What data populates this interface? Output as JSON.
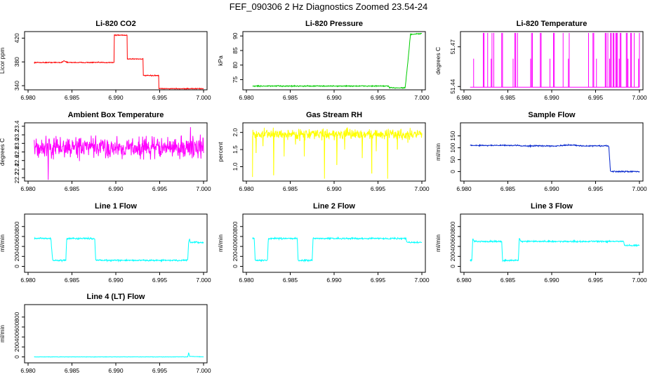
{
  "figure_title": "FEF_090306  2 Hz Diagnostics Zoomed 23.54-24",
  "chart_data": [
    {
      "type": "line",
      "title": "Li-820 CO2",
      "ylabel": "Licor ppm",
      "color": "#ff0000",
      "xlim": [
        6.98,
        7.0
      ],
      "ylim": [
        333,
        431
      ],
      "yticks": [
        340,
        380,
        420
      ],
      "yticklabels": [
        "340",
        "380",
        "420"
      ],
      "xticks": [
        6.98,
        6.985,
        6.99,
        6.995,
        7.0
      ],
      "xticklabels": [
        "6.980",
        "6.985",
        "6.990",
        "6.995",
        "7.000"
      ],
      "series": [
        {
          "name": "CO2",
          "points": [
            [
              6.9807,
              379
            ],
            [
              6.9838,
              379
            ],
            [
              6.9841,
              382
            ],
            [
              6.9845,
              379
            ],
            [
              6.9898,
              379
            ],
            [
              6.9898,
              425
            ],
            [
              6.9913,
              425
            ],
            [
              6.9913,
              385
            ],
            [
              6.9931,
              385
            ],
            [
              6.9931,
              357
            ],
            [
              6.9949,
              357
            ],
            [
              6.9949,
              335
            ],
            [
              6.9981,
              335
            ],
            [
              6.9981,
              338
            ],
            [
              6.9981,
              335
            ],
            [
              7.0,
              335
            ]
          ],
          "noise": 0.6
        }
      ]
    },
    {
      "type": "line",
      "title": "Li-820 Pressure",
      "ylabel": "kPa",
      "color": "#00cc00",
      "xlim": [
        6.98,
        7.0
      ],
      "ylim": [
        71.5,
        91.5
      ],
      "yticks": [
        75,
        80,
        85,
        90
      ],
      "yticklabels": [
        "75",
        "80",
        "85",
        "90"
      ],
      "xticks": [
        6.98,
        6.985,
        6.99,
        6.995,
        7.0
      ],
      "xticklabels": [
        "6.980",
        "6.985",
        "6.990",
        "6.995",
        "7.000"
      ],
      "series": [
        {
          "name": "Pressure",
          "points": [
            [
              6.9807,
              72.8
            ],
            [
              6.9962,
              72.8
            ],
            [
              6.9963,
              72.2
            ],
            [
              6.9981,
              72.2
            ],
            [
              6.9985,
              84
            ],
            [
              6.9987,
              90.5
            ],
            [
              7.0,
              90.8
            ]
          ],
          "noise": 0.15
        }
      ]
    },
    {
      "type": "line",
      "title": "Li-820 Temperature",
      "ylabel": "degrees C",
      "color": "#ff00ff",
      "xlim": [
        6.98,
        7.0
      ],
      "ylim": [
        51.4375,
        51.4815
      ],
      "yticks": [
        51.44,
        51.47
      ],
      "yticklabels": [
        "51.44",
        "51.47"
      ],
      "xticks": [
        6.98,
        6.985,
        6.99,
        6.995,
        7.0
      ],
      "xticklabels": [
        "6.980",
        "6.985",
        "6.990",
        "6.995",
        "7.000"
      ],
      "series": [
        {
          "name": "Temperature",
          "baseline": 51.4395,
          "spike_to": [
            51.461,
            51.4805
          ],
          "spikes": [
            6.9811,
            6.9822,
            6.9827,
            6.9831,
            6.9834,
            6.9843,
            6.9856,
            6.9858,
            6.9861,
            6.9876,
            6.9878,
            6.9887,
            6.9898,
            6.9902,
            6.9913,
            6.9919,
            6.9942,
            6.9947,
            6.9951,
            6.9961,
            6.9964,
            6.9966,
            6.9968,
            6.997,
            6.9971,
            6.9973,
            6.9975,
            6.9977,
            6.9979,
            6.9985,
            6.9987,
            6.999,
            6.9994,
            6.9999
          ]
        }
      ]
    },
    {
      "type": "line",
      "title": "Ambient Box Temperature",
      "ylabel": "degrees C",
      "color": "#ff00ff",
      "xlim": [
        6.98,
        7.0
      ],
      "ylim": [
        22.12,
        23.48
      ],
      "yticks": [
        22.2,
        22.4,
        22.6,
        22.8,
        23.0,
        23.2,
        23.4
      ],
      "yticklabels": [
        "22.2",
        "22.4",
        "22.6",
        "22.8",
        "23.0",
        "23.2",
        "23.4"
      ],
      "xticks": [
        6.98,
        6.985,
        6.99,
        6.995,
        7.0
      ],
      "xticklabels": [
        "6.980",
        "6.985",
        "6.990",
        "6.995",
        "7.000"
      ],
      "series": [
        {
          "name": "Box temperature",
          "points": [
            [
              6.9807,
              22.9
            ],
            [
              7.0,
              22.9
            ]
          ],
          "noise": 0.2,
          "min_point": [
            6.9823,
            22.15
          ],
          "max_point": [
            6.9985,
            23.38
          ]
        }
      ]
    },
    {
      "type": "line",
      "title": "Gas Stream RH",
      "ylabel": "percent",
      "color": "#ffff00",
      "xlim": [
        6.98,
        7.0
      ],
      "ylim": [
        0.58,
        2.28
      ],
      "yticks": [
        1.0,
        1.5,
        2.0
      ],
      "yticklabels": [
        "1.0",
        "1.5",
        "2.0"
      ],
      "xticks": [
        6.98,
        6.985,
        6.99,
        6.995,
        7.0
      ],
      "xticklabels": [
        "6.980",
        "6.985",
        "6.990",
        "6.995",
        "7.000"
      ],
      "series": [
        {
          "name": "RH",
          "points": [
            [
              6.9807,
              1.95
            ],
            [
              7.0,
              1.95
            ]
          ],
          "noise": 0.12,
          "dips": [
            [
              6.9807,
              0.7
            ],
            [
              6.9811,
              1.4
            ],
            [
              6.9819,
              1.6
            ],
            [
              6.9831,
              0.75
            ],
            [
              6.9843,
              1.3
            ],
            [
              6.9856,
              1.65
            ],
            [
              6.9866,
              1.3
            ],
            [
              6.9889,
              0.65
            ],
            [
              6.9903,
              1.05
            ],
            [
              6.9912,
              1.5
            ],
            [
              6.9932,
              1.25
            ],
            [
              6.9943,
              0.8
            ],
            [
              6.9948,
              1.45
            ],
            [
              6.9961,
              0.65
            ],
            [
              6.9972,
              1.5
            ],
            [
              6.9984,
              1.7
            ]
          ]
        }
      ]
    },
    {
      "type": "line",
      "title": "Sample Flow",
      "ylabel": "ml/min",
      "color": "#0022cc",
      "xlim": [
        6.98,
        7.0
      ],
      "ylim": [
        -40,
        205
      ],
      "yticks": [
        0,
        50,
        100,
        150
      ],
      "yticklabels": [
        "0",
        "50",
        "100",
        "150"
      ],
      "xticks": [
        6.98,
        6.985,
        6.99,
        6.995,
        7.0
      ],
      "xticklabels": [
        "6.980",
        "6.985",
        "6.990",
        "6.995",
        "7.000"
      ],
      "series": [
        {
          "name": "Sample flow",
          "points": [
            [
              6.9807,
              110
            ],
            [
              6.9862,
              110
            ],
            [
              6.9862,
              108
            ],
            [
              6.9905,
              108
            ],
            [
              6.9925,
              112
            ],
            [
              6.9932,
              108
            ],
            [
              6.9965,
              108
            ],
            [
              6.9967,
              0
            ],
            [
              7.0,
              0
            ]
          ],
          "noise": 2
        }
      ]
    },
    {
      "type": "line",
      "title": "Line 1 Flow",
      "ylabel": "ml/min",
      "color": "#00ffff",
      "xlim": [
        6.98,
        7.0
      ],
      "ylim": [
        -120,
        1050
      ],
      "yticks": [
        0,
        200,
        400,
        600,
        800
      ],
      "yticklabels": [
        "0",
        "200",
        "400",
        "600",
        "800"
      ],
      "xticks": [
        6.98,
        6.985,
        6.99,
        6.995,
        7.0
      ],
      "xticklabels": [
        "6.980",
        "6.985",
        "6.990",
        "6.995",
        "7.000"
      ],
      "series": [
        {
          "name": "Line 1",
          "points": [
            [
              6.9807,
              560
            ],
            [
              6.9826,
              560
            ],
            [
              6.9828,
              120
            ],
            [
              6.9843,
              120
            ],
            [
              6.9844,
              560
            ],
            [
              6.9876,
              560
            ],
            [
              6.9877,
              130
            ],
            [
              6.9887,
              120
            ],
            [
              6.9982,
              120
            ],
            [
              6.9983,
              480
            ],
            [
              6.9984,
              560
            ],
            [
              6.9985,
              480
            ],
            [
              7.0,
              480
            ]
          ],
          "noise": 12
        }
      ]
    },
    {
      "type": "line",
      "title": "Line 2 Flow",
      "ylabel": "ml/min",
      "color": "#00ffff",
      "xlim": [
        6.98,
        7.0
      ],
      "ylim": [
        -120,
        1050
      ],
      "yticks": [
        0,
        200,
        400,
        600,
        800
      ],
      "yticklabels": [
        "0",
        "200",
        "400",
        "600",
        "800"
      ],
      "xticks": [
        6.98,
        6.985,
        6.99,
        6.995,
        7.0
      ],
      "xticklabels": [
        "6.980",
        "6.985",
        "6.990",
        "6.995",
        "7.000"
      ],
      "series": [
        {
          "name": "Line 2",
          "points": [
            [
              6.9807,
              560
            ],
            [
              6.9809,
              560
            ],
            [
              6.981,
              120
            ],
            [
              6.9824,
              120
            ],
            [
              6.9825,
              560
            ],
            [
              6.9858,
              560
            ],
            [
              6.9859,
              120
            ],
            [
              6.9875,
              120
            ],
            [
              6.9876,
              560
            ],
            [
              6.9982,
              560
            ],
            [
              6.9983,
              480
            ],
            [
              7.0,
              480
            ]
          ],
          "noise": 12
        }
      ]
    },
    {
      "type": "line",
      "title": "Line 3 Flow",
      "ylabel": "ml/min",
      "color": "#00ffff",
      "xlim": [
        6.98,
        7.0
      ],
      "ylim": [
        -120,
        1050
      ],
      "yticks": [
        0,
        200,
        400,
        600,
        800
      ],
      "yticklabels": [
        "0",
        "200",
        "400",
        "600",
        "800"
      ],
      "xticks": [
        6.98,
        6.985,
        6.99,
        6.995,
        7.0
      ],
      "xticklabels": [
        "6.980",
        "6.985",
        "6.990",
        "6.995",
        "7.000"
      ],
      "series": [
        {
          "name": "Line 3",
          "points": [
            [
              6.9807,
              120
            ],
            [
              6.9809,
              120
            ],
            [
              6.981,
              560
            ],
            [
              6.9812,
              500
            ],
            [
              6.9843,
              500
            ],
            [
              6.9844,
              120
            ],
            [
              6.9862,
              120
            ],
            [
              6.9863,
              570
            ],
            [
              6.9865,
              500
            ],
            [
              6.9982,
              500
            ],
            [
              6.9983,
              420
            ],
            [
              7.0,
              420
            ]
          ],
          "noise": 12
        }
      ]
    },
    {
      "type": "line",
      "title": "Line 4 (LT) Flow",
      "ylabel": "ml/min",
      "color": "#00ffff",
      "xlim": [
        6.98,
        7.0
      ],
      "ylim": [
        -120,
        1050
      ],
      "yticks": [
        0,
        200,
        400,
        600,
        800
      ],
      "yticklabels": [
        "0",
        "200",
        "400",
        "600",
        "800"
      ],
      "xticks": [
        6.98,
        6.985,
        6.99,
        6.995,
        7.0
      ],
      "xticklabels": [
        "6.980",
        "6.985",
        "6.990",
        "6.995",
        "7.000"
      ],
      "series": [
        {
          "name": "Line 4",
          "points": [
            [
              6.9807,
              0
            ],
            [
              6.9982,
              0
            ],
            [
              6.9983,
              90
            ],
            [
              6.9984,
              10
            ],
            [
              7.0,
              0
            ]
          ],
          "noise": 3
        }
      ]
    }
  ]
}
